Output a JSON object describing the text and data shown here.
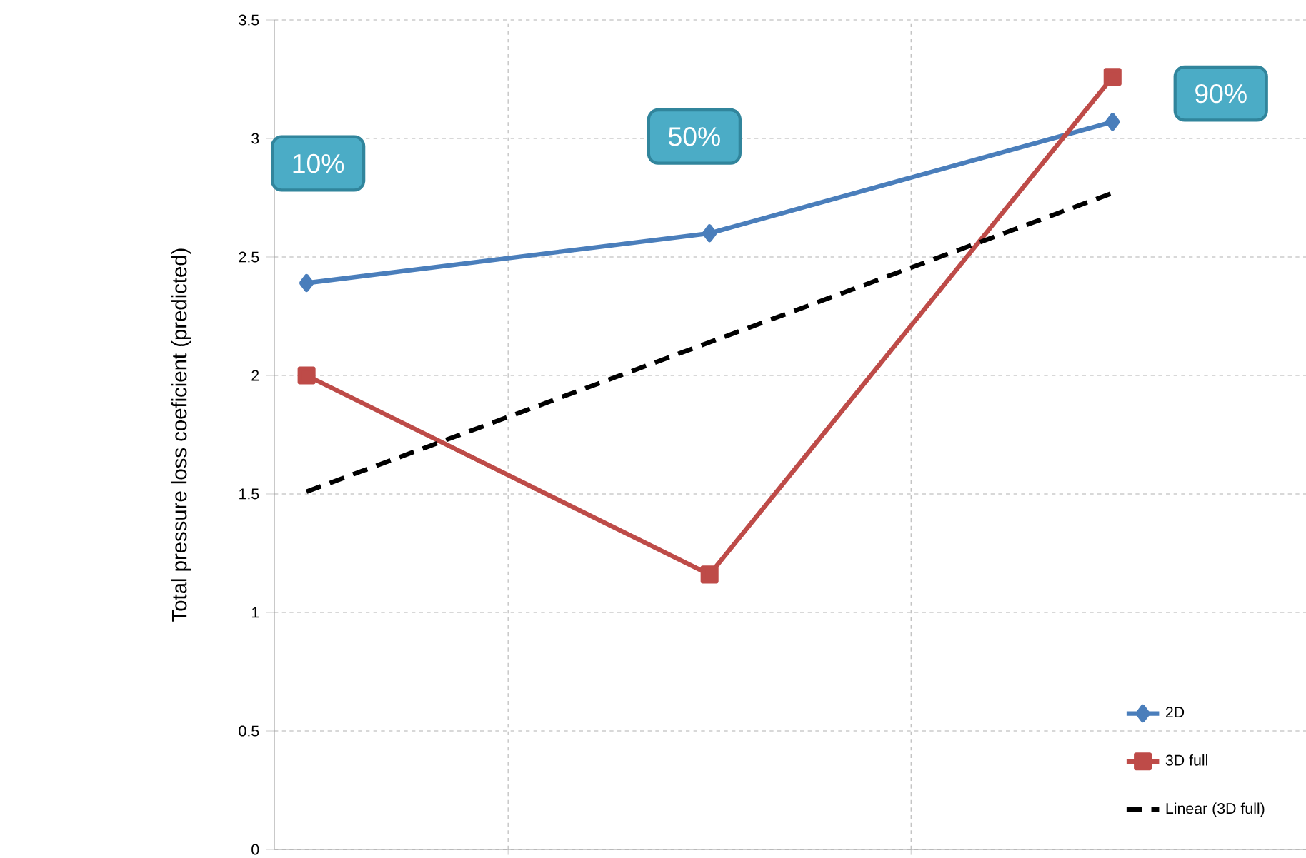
{
  "chart_data": {
    "type": "line",
    "ylabel": "Total pressure loss coeficient (predicted)",
    "categories": [
      null,
      null,
      null
    ],
    "ylim": [
      0,
      3.5
    ],
    "yticks": [
      0,
      0.5,
      1,
      1.5,
      2,
      2.5,
      3,
      3.5
    ],
    "grid": true,
    "legend": "bottom right",
    "series": [
      {
        "name": "2D",
        "color": "#4a7ebb",
        "values": [
          2.39,
          2.6,
          3.07
        ],
        "marker": "diamond",
        "line_style": "solid"
      },
      {
        "name": "3D full",
        "color": "#be4b48",
        "values": [
          2.0,
          1.16,
          3.26
        ],
        "marker": "square",
        "line_style": "solid"
      },
      {
        "name": "Linear (3D full)",
        "color": "#000000",
        "values": [
          1.51,
          2.14,
          2.77
        ],
        "marker": "none",
        "line_style": "dashed"
      }
    ],
    "annotations": [
      "10%",
      "50%",
      "90%"
    ]
  }
}
